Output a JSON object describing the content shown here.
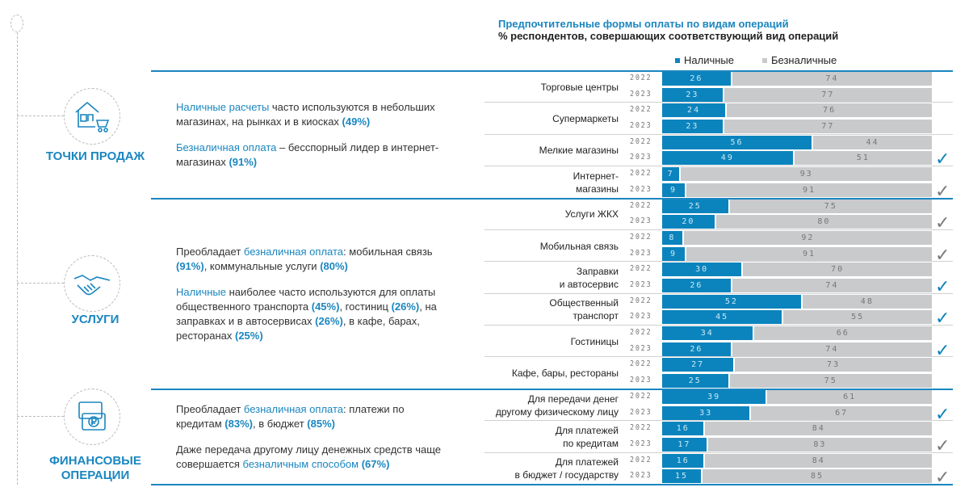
{
  "chart_data": {
    "type": "bar",
    "orientation": "horizontal-stacked-100",
    "title": "Предпочтительные формы оплаты по видам операций",
    "subtitle": "% респондентов, совершающих соответствующий вид операций",
    "legend": {
      "placement": "top",
      "items": [
        {
          "name": "Наличные",
          "color": "#0b84bd"
        },
        {
          "name": "Безналичные",
          "color": "#c9cacc"
        }
      ]
    },
    "years": [
      "2022",
      "2023"
    ],
    "check_colors": {
      "blue": "#0b84bd",
      "gray": "#7a7a7a"
    },
    "categories": [
      {
        "label": "Торговые центры",
        "section": 0,
        "cash": [
          26,
          23
        ],
        "cashless": [
          74,
          77
        ],
        "check": null
      },
      {
        "label": "Супермаркеты",
        "section": 0,
        "cash": [
          24,
          23
        ],
        "cashless": [
          76,
          77
        ],
        "check": null
      },
      {
        "label": "Мелкие магазины",
        "section": 0,
        "cash": [
          56,
          49
        ],
        "cashless": [
          44,
          51
        ],
        "check": "blue"
      },
      {
        "label": "Интернет-\nмагазины",
        "section": 0,
        "cash": [
          7,
          9
        ],
        "cashless": [
          93,
          91
        ],
        "check": "gray"
      },
      {
        "label": "Услуги ЖКХ",
        "section": 1,
        "cash": [
          25,
          20
        ],
        "cashless": [
          75,
          80
        ],
        "check": "gray"
      },
      {
        "label": "Мобильная связь",
        "section": 1,
        "cash": [
          8,
          9
        ],
        "cashless": [
          92,
          91
        ],
        "check": "gray"
      },
      {
        "label": "Заправки\nи автосервис",
        "section": 1,
        "cash": [
          30,
          26
        ],
        "cashless": [
          70,
          74
        ],
        "check": "blue"
      },
      {
        "label": "Общественный\nтранспорт",
        "section": 1,
        "cash": [
          52,
          45
        ],
        "cashless": [
          48,
          55
        ],
        "check": "blue"
      },
      {
        "label": "Гостиницы",
        "section": 1,
        "cash": [
          34,
          26
        ],
        "cashless": [
          66,
          74
        ],
        "check": "blue"
      },
      {
        "label": "Кафе, бары, рестораны",
        "section": 1,
        "cash": [
          27,
          25
        ],
        "cashless": [
          73,
          75
        ],
        "check": null
      },
      {
        "label": "Для передачи денег\nдругому физическому лицу",
        "section": 2,
        "cash": [
          39,
          33
        ],
        "cashless": [
          61,
          67
        ],
        "check": "blue"
      },
      {
        "label": "Для платежей\nпо кредитам",
        "section": 2,
        "cash": [
          16,
          17
        ],
        "cashless": [
          84,
          83
        ],
        "check": "gray"
      },
      {
        "label": "Для платежей\nв бюджет / государству",
        "section": 2,
        "cash": [
          16,
          15
        ],
        "cashless": [
          84,
          85
        ],
        "check": "gray"
      }
    ]
  },
  "sections": [
    {
      "title": "ТОЧКИ ПРОДАЖ",
      "icon": "shop-cart-icon",
      "paragraphs": [
        [
          {
            "t": "Наличные расчеты",
            "s": "accent"
          },
          {
            "t": " часто используются в небольших магазинах, на рынках и в киосках ",
            "s": "normal"
          },
          {
            "t": "(49%)",
            "s": "bold"
          }
        ],
        [
          {
            "t": "Безналичная оплата",
            "s": "accent"
          },
          {
            "t": " – бесспорный лидер в интернет-магазинах ",
            "s": "normal"
          },
          {
            "t": "(91%)",
            "s": "bold"
          }
        ]
      ]
    },
    {
      "title": "УСЛУГИ",
      "icon": "handshake-icon",
      "paragraphs": [
        [
          {
            "t": "Преобладает ",
            "s": "normal"
          },
          {
            "t": "безналичная оплата",
            "s": "accent"
          },
          {
            "t": ": мобильная связь ",
            "s": "normal"
          },
          {
            "t": "(91%)",
            "s": "bold"
          },
          {
            "t": ", коммунальные услуги ",
            "s": "normal"
          },
          {
            "t": "(80%)",
            "s": "bold"
          }
        ],
        [
          {
            "t": "Наличные",
            "s": "accent"
          },
          {
            "t": " наиболее часто используются для оплаты общественного транспорта ",
            "s": "normal"
          },
          {
            "t": "(45%)",
            "s": "bold"
          },
          {
            "t": ", гостиниц ",
            "s": "normal"
          },
          {
            "t": "(26%)",
            "s": "bold"
          },
          {
            "t": ", на заправках и в автосервисах ",
            "s": "normal"
          },
          {
            "t": "(26%)",
            "s": "bold"
          },
          {
            "t": ", в кафе, барах, ресторанах ",
            "s": "normal"
          },
          {
            "t": "(25%)",
            "s": "bold"
          }
        ]
      ]
    },
    {
      "title": "ФИНАНСОВЫЕ ОПЕРАЦИИ",
      "icon": "ruble-coins-icon",
      "paragraphs": [
        [
          {
            "t": "Преобладает ",
            "s": "normal"
          },
          {
            "t": "безналичная оплата",
            "s": "accent"
          },
          {
            "t": ": платежи по кредитам ",
            "s": "normal"
          },
          {
            "t": "(83%)",
            "s": "bold"
          },
          {
            "t": ", в бюджет ",
            "s": "normal"
          },
          {
            "t": "(85%)",
            "s": "bold"
          }
        ],
        [
          {
            "t": "Даже передача другому лицу денежных средств чаще совершается ",
            "s": "normal"
          },
          {
            "t": "безналичным способом",
            "s": "accent"
          },
          {
            "t": " ",
            "s": "normal"
          },
          {
            "t": "(67%)",
            "s": "bold"
          }
        ]
      ]
    }
  ]
}
